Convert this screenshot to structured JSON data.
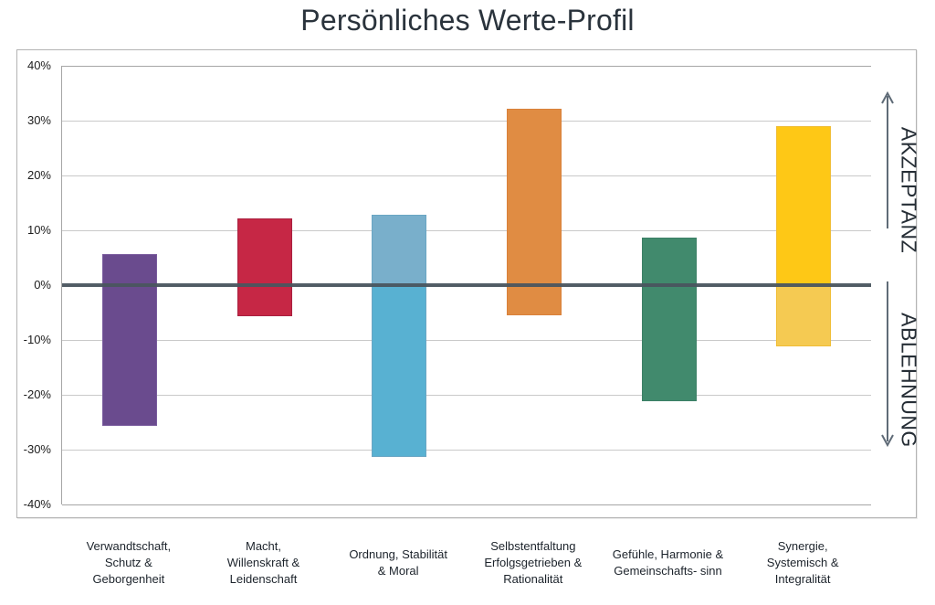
{
  "title": "Persönliches Werte-Profil",
  "side_labels": {
    "acceptance": "AKZEPTANZ",
    "rejection": "ABLEHNUNG"
  },
  "chart_data": {
    "type": "bar",
    "title": "Persönliches Werte-Profil",
    "orientation": "vertical",
    "ylim": [
      -40,
      40
    ],
    "y_tick_labels": [
      "40%",
      "30%",
      "20%",
      "10%",
      "0%",
      "-10%",
      "-20%",
      "-30%",
      "-40%"
    ],
    "grid": true,
    "zero_baseline": true,
    "legend": "none",
    "categories": [
      [
        "Verwandtschaft,",
        "Schutz &",
        "Geborgenheit"
      ],
      [
        "Macht,",
        "Willenskraft &",
        "Leidenschaft"
      ],
      [
        "Ordnung, Stabilität",
        "& Moral"
      ],
      [
        "Selbstentfaltung",
        "Erfolgsgetrieben &",
        "Rationalität"
      ],
      [
        "Gefühle, Harmonie &",
        "Gemeinschafts- sinn"
      ],
      [
        "Synergie,",
        "Systemisch &",
        "Integralität"
      ]
    ],
    "series": [
      {
        "name": "Akzeptanz",
        "values": [
          5.6,
          12.2,
          12.8,
          32.2,
          8.6,
          29.0
        ]
      },
      {
        "name": "Ablehnung",
        "values": [
          -25.7,
          -5.7,
          -31.3,
          -5.5,
          -21.2,
          -11.1
        ]
      }
    ],
    "bar_colors_positive": [
      "#6a4b8e",
      "#c62745",
      "#79afcb",
      "#e08c43",
      "#418a6d",
      "#fec816"
    ],
    "bar_colors_negative": [
      "#6a4b8e",
      "#c62745",
      "#58b1d2",
      "#e08c43",
      "#418a6d",
      "#f5ca52"
    ],
    "bar_border_colors": [
      "#7a5c9e",
      "#a81f3f",
      "#6aa6c4",
      "#d9813a",
      "#3c8066",
      "#f0bd35"
    ]
  },
  "colors": {
    "zero_line": "#4a555f",
    "gridline": "#c9c9c9",
    "plot_border": "#a6a6a6",
    "frame_border": "#b3b3b3",
    "arrow": "#5f6b77",
    "title_text": "#2a333c",
    "axis_text": "#1c1c1c",
    "side_label_text": "#262e36"
  }
}
